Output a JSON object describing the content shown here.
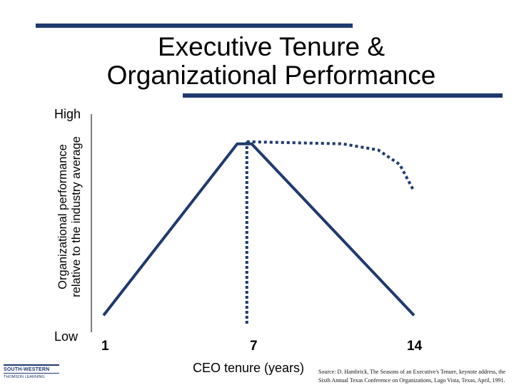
{
  "title_lines": [
    "Executive Tenure &",
    "Organizational Performance"
  ],
  "logo": {
    "line1": "SOUTH-WESTERN",
    "line2": "THOMSON LEARNING"
  },
  "source": "Source: D. Hambrick, The Seasons of an Executive's Tenure, keynote address, the Sixth Annual Texas Conference on Organizations, Lago Vista, Texas, April, 1991.",
  "colors": {
    "line": "#1f3a6e",
    "rule": "#1f3a6e"
  },
  "chart_data": {
    "type": "line",
    "title": "Executive Tenure & Organizational Performance",
    "xlabel": "CEO tenure (years)",
    "ylabel_lines": [
      "Organizational performance",
      "relative to the industry average"
    ],
    "y_tick_labels": {
      "high": "High",
      "low": "Low"
    },
    "x_tick_labels": [
      "1",
      "7",
      "14"
    ],
    "x_ticks": [
      1,
      7,
      14
    ],
    "xlim": [
      1,
      14
    ],
    "ylim": [
      0,
      1
    ],
    "grid": false,
    "series": [
      {
        "style": "solid",
        "points": [
          [
            1,
            0.04
          ],
          [
            6.6,
            0.87
          ],
          [
            7.2,
            0.87
          ],
          [
            14,
            0.04
          ]
        ]
      },
      {
        "style": "dotted",
        "points": [
          [
            7,
            0.88
          ],
          [
            11,
            0.87
          ],
          [
            12.5,
            0.84
          ],
          [
            13.4,
            0.77
          ],
          [
            14,
            0.64
          ]
        ]
      }
    ],
    "vertical_marker": {
      "x": 7,
      "style": "dotted",
      "from_y": 0,
      "to_y": 0.88
    }
  }
}
